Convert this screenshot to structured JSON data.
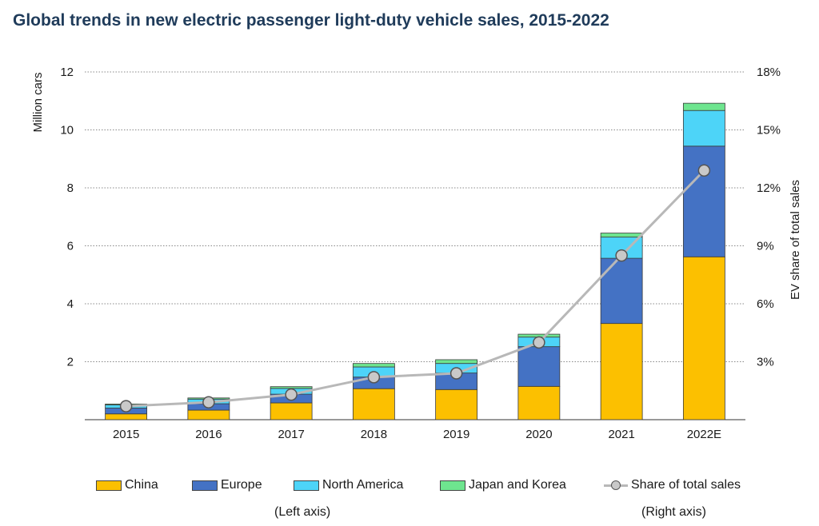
{
  "title": "Global trends in new electric passenger light-duty vehicle sales, 2015-2022",
  "colors": {
    "china": "#fcc000",
    "europe": "#4472c4",
    "north_america": "#4dd4f8",
    "japan_korea": "#6ee58f",
    "share_line": "#b8b8b8",
    "share_marker": "#c9c9c9",
    "grid": "#888888"
  },
  "legend": {
    "china": "China",
    "europe": "Europe",
    "north_america": "North America",
    "japan_korea": "Japan and Korea",
    "share": "Share of total sales",
    "left_note": "(Left axis)",
    "right_note": "(Right axis)"
  },
  "chart_data": {
    "type": "bar",
    "stacked": true,
    "title": "Global trends in new electric passenger light-duty vehicle sales, 2015-2022",
    "categories": [
      "2015",
      "2016",
      "2017",
      "2018",
      "2019",
      "2020",
      "2021",
      "2022E"
    ],
    "ylabel": "Million cars",
    "ylim": [
      0,
      12
    ],
    "yticks": [
      "12",
      "10",
      "8",
      "6",
      "4",
      "2"
    ],
    "y2label": "EV share of total sales",
    "y2lim": [
      0,
      18
    ],
    "y2ticks": [
      "18%",
      "15%",
      "12%",
      "9%",
      "6%",
      "3%"
    ],
    "grid": true,
    "legend_position": "bottom",
    "series": [
      {
        "name": "China",
        "axis": "left",
        "values": [
          0.2,
          0.33,
          0.58,
          1.07,
          1.04,
          1.15,
          3.32,
          5.62
        ]
      },
      {
        "name": "Europe",
        "axis": "left",
        "values": [
          0.2,
          0.22,
          0.3,
          0.4,
          0.57,
          1.37,
          2.25,
          3.82
        ]
      },
      {
        "name": "North America",
        "axis": "left",
        "values": [
          0.11,
          0.16,
          0.2,
          0.35,
          0.33,
          0.33,
          0.73,
          1.23
        ]
      },
      {
        "name": "Japan and Korea",
        "axis": "left",
        "values": [
          0.03,
          0.04,
          0.06,
          0.12,
          0.13,
          0.1,
          0.14,
          0.25
        ]
      },
      {
        "name": "Share of total sales",
        "axis": "right",
        "type": "line",
        "values": [
          0.7,
          0.9,
          1.3,
          2.2,
          2.4,
          4.0,
          8.5,
          12.9
        ]
      }
    ]
  }
}
